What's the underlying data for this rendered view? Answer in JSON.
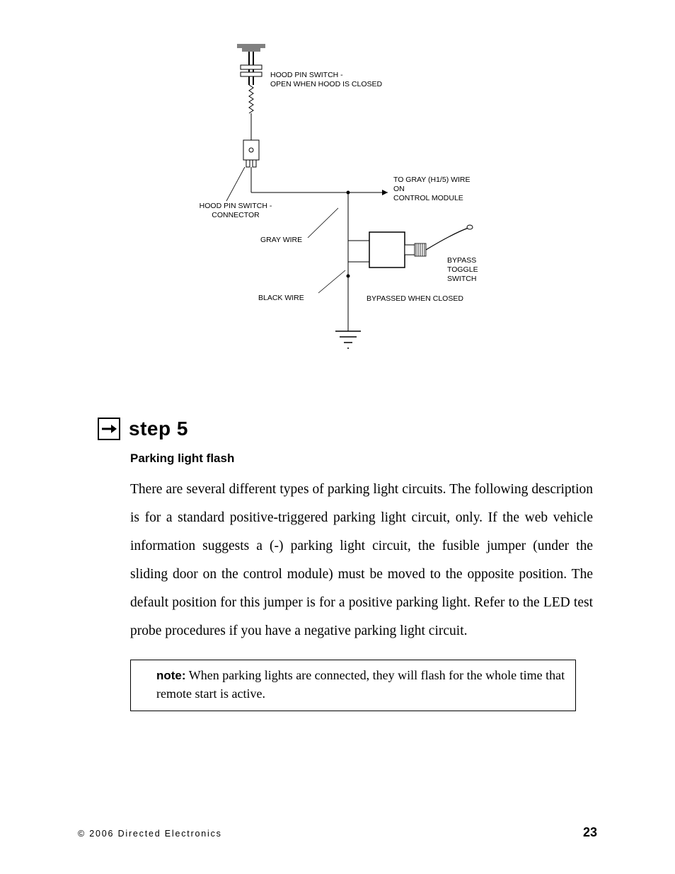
{
  "diagram": {
    "labels": {
      "hood_pin_open": "HOOD PIN SWITCH -\nOPEN WHEN HOOD IS CLOSED",
      "hood_pin_connector": "HOOD PIN SWITCH -\nCONNECTOR",
      "to_gray": "TO GRAY (H1/5) WIRE\nON\nCONTROL MODULE",
      "gray_wire": "GRAY WIRE",
      "black_wire": "BLACK WIRE",
      "bypass_switch": "BYPASS\nTOGGLE\nSWITCH",
      "bypassed": "BYPASSED WHEN CLOSED"
    },
    "stroke": "#000000",
    "bg": "#ffffff",
    "gray_fill": "#808080"
  },
  "step": {
    "title": "step 5",
    "subhead": "Parking light flash",
    "body": "There are several different types of parking light circuits. The following description is for a standard positive-triggered parking light circuit, only. If the web vehicle information suggests a (-) parking light circuit, the fusible jumper (under the sliding door on the control module) must be moved to the opposite position. The default position for this jumper is for a positive parking light. Refer to the LED test probe procedures if you have a negative parking light circuit.",
    "note_label": "note:",
    "note_body": "When parking lights are connected, they will flash for the whole time that remote start is active."
  },
  "footer": {
    "copyright": "© 2006 Directed Electronics",
    "page": "23"
  }
}
